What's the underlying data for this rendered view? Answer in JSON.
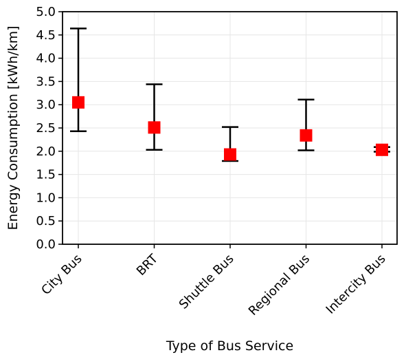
{
  "chart_data": {
    "type": "scatter",
    "title": "",
    "xlabel": "Type of Bus Service",
    "ylabel": "Energy Consumption [kWh/km]",
    "categories": [
      "City Bus",
      "BRT",
      "Shuttle Bus",
      "Regional Bus",
      "Intercity Bus"
    ],
    "series": [
      {
        "values": [
          3.05,
          2.51,
          1.93,
          2.34,
          2.03
        ],
        "lower": [
          2.43,
          2.03,
          1.79,
          2.02,
          1.99
        ],
        "upper": [
          4.64,
          3.44,
          2.52,
          3.11,
          2.09
        ]
      }
    ],
    "ylim": [
      0,
      5.0
    ],
    "yticks": [
      "0.0",
      "0.5",
      "1.0",
      "1.5",
      "2.0",
      "2.5",
      "3.0",
      "3.5",
      "4.0",
      "4.5",
      "5.0"
    ],
    "grid": true,
    "marker_color": "#ff0000",
    "errorbar_color": "#000000"
  }
}
